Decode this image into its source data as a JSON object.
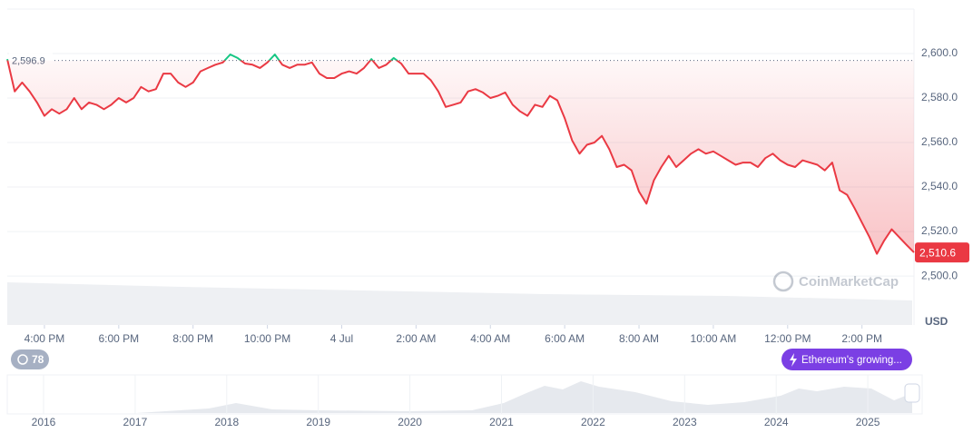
{
  "chart_data": {
    "type": "line",
    "color": "#ea3943",
    "up_color": "#16c784",
    "values": [
      2597.5,
      2583,
      2587,
      2583,
      2578,
      2572,
      2575,
      2573,
      2575,
      2580,
      2575,
      2578,
      2577,
      2575,
      2577,
      2580,
      2578,
      2580,
      2585,
      2583,
      2584,
      2591,
      2591,
      2587,
      2585,
      2587,
      2592,
      2593.5,
      2595,
      2596,
      2599.6,
      2598,
      2595.5,
      2595,
      2593.5,
      2596,
      2599.6,
      2595,
      2593.5,
      2595,
      2595,
      2596,
      2591,
      2589,
      2589,
      2591,
      2592,
      2591,
      2593.5,
      2597.5,
      2593.5,
      2595,
      2598,
      2595.5,
      2591,
      2591,
      2591,
      2588,
      2583,
      2576,
      2577,
      2578,
      2583,
      2584,
      2582.5,
      2580,
      2581,
      2582.5,
      2577,
      2574,
      2572,
      2577,
      2576,
      2581,
      2579,
      2571,
      2561,
      2555,
      2559,
      2560,
      2563,
      2557,
      2549,
      2550,
      2547.5,
      2538,
      2532.5,
      2543,
      2549,
      2554,
      2549,
      2552,
      2555,
      2557,
      2555,
      2556,
      2554,
      2552,
      2550,
      2551,
      2551,
      2549,
      2553,
      2555,
      2552,
      2550,
      2549,
      2552,
      2551,
      2550,
      2547.5,
      2551,
      2538.5,
      2536.5,
      2530.5,
      2524,
      2517.5,
      2510,
      2516,
      2521,
      2517.5,
      2514,
      2510.6
    ],
    "xlim": [
      0,
      122
    ],
    "xticks": [
      {
        "value": 5,
        "label": "4:00 PM"
      },
      {
        "value": 15,
        "label": "6:00 PM"
      },
      {
        "value": 25,
        "label": "8:00 PM"
      },
      {
        "value": 35,
        "label": "10:00 PM"
      },
      {
        "value": 45,
        "label": "4 Jul"
      },
      {
        "value": 55,
        "label": "2:00 AM"
      },
      {
        "value": 65,
        "label": "4:00 AM"
      },
      {
        "value": 75,
        "label": "6:00 AM"
      },
      {
        "value": 85,
        "label": "8:00 AM"
      },
      {
        "value": 95,
        "label": "10:00 AM"
      },
      {
        "value": 105,
        "label": "12:00 PM"
      },
      {
        "value": 115,
        "label": "2:00 PM"
      }
    ],
    "ylim": [
      2478,
      2620
    ],
    "yticks": [
      {
        "value": 2500,
        "label": "2,500.0"
      },
      {
        "value": 2520,
        "label": "2,520.0"
      },
      {
        "value": 2540,
        "label": "2,540.0"
      },
      {
        "value": 2560,
        "label": "2,560.0"
      },
      {
        "value": 2580,
        "label": "2,580.0"
      },
      {
        "value": 2600,
        "label": "2,600.0"
      }
    ],
    "grid": true,
    "y_axis_label": "USD",
    "reference": {
      "value": 2596.9,
      "label": "2,596.9"
    },
    "last_price": {
      "value": 2510.6,
      "label": "2,510.6"
    },
    "watermark": "CoinMarketCap",
    "badge_count": "78",
    "event_label": "Ethereum's growing...",
    "overview_years": [
      2016,
      2017,
      2018,
      2019,
      2020,
      2021,
      2022,
      2023,
      2024,
      2025
    ]
  }
}
